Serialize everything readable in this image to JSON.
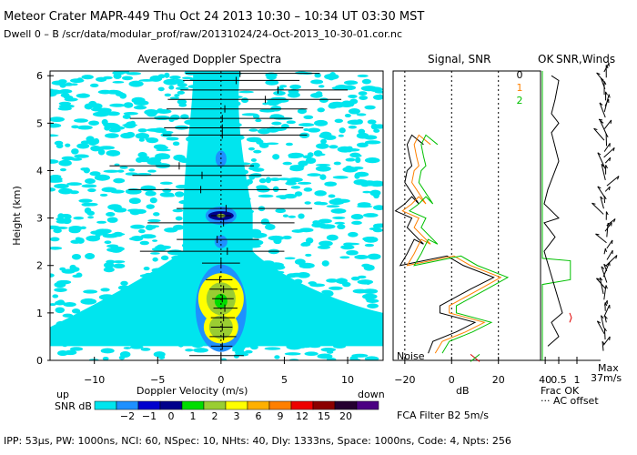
{
  "header": {
    "title": "Meteor Crater   MAPR-449   Thu Oct 24 2013 10:30 – 10:34 UT 03:30 MST",
    "subtitle": "Dwell   0 –  B    /scr/data/modular_prof/raw/20131024/24-Oct-2013_10-30-01.cor.nc"
  },
  "footer": {
    "params": "IPP:  53μs,  PW: 1000ns,  NCI:  60,  NSpec: 10,  NHts: 40,  Dly: 1333ns,  Space: 1000ns,  Code: 4,  Npts: 256",
    "fca": "FCA Filter B2   5m/s"
  },
  "chart_data": [
    {
      "type": "heatmap",
      "title": "Averaged Doppler Spectra",
      "xlabel": "Doppler Velocity (m/s)",
      "ylabel": "Height (km)",
      "xlim": [
        -13.5,
        12.8
      ],
      "ylim": [
        0,
        6.1
      ],
      "x_ticks": [
        -10,
        -5,
        0,
        5,
        10
      ],
      "y_ticks": [
        0,
        1,
        2,
        3,
        4,
        5,
        6
      ],
      "x_left_label": "up",
      "x_right_label": "down",
      "colorbar": {
        "label": "SNR dB",
        "ticks": [
          "−2",
          "−1",
          "0",
          "1",
          "2",
          "3",
          "6",
          "9",
          "12",
          "15",
          "20"
        ],
        "colors": [
          "#00e5ee",
          "#1e90ff",
          "#0000cd",
          "#00008b",
          "#00dd00",
          "#9acd32",
          "#ffff00",
          "#ffb000",
          "#ff7f00",
          "#ee0000",
          "#8b0000",
          "#250030",
          "#4b0082"
        ]
      },
      "velocity_bars": [
        {
          "h": 0.1,
          "v": 0.0,
          "lo": -2.5,
          "hi": 1.8
        },
        {
          "h": 0.3,
          "v": 0.1,
          "lo": -0.8,
          "hi": 0.9
        },
        {
          "h": 0.5,
          "v": 0.2,
          "lo": -0.9,
          "hi": 1.2
        },
        {
          "h": 0.7,
          "v": 0.1,
          "lo": -0.8,
          "hi": 0.9
        },
        {
          "h": 0.9,
          "v": 0.2,
          "lo": -0.8,
          "hi": 1.1
        },
        {
          "h": 1.1,
          "v": 0.3,
          "lo": -0.6,
          "hi": 1.3
        },
        {
          "h": 1.3,
          "v": 0.1,
          "lo": -0.7,
          "hi": 1.0
        },
        {
          "h": 1.5,
          "v": 0.2,
          "lo": -0.9,
          "hi": 1.3
        },
        {
          "h": 1.7,
          "v": -0.1,
          "lo": -1.2,
          "hi": 0.9
        },
        {
          "h": 2.05,
          "v": 0.0,
          "lo": -1.5,
          "hi": 1.5
        },
        {
          "h": 2.3,
          "v": 0.5,
          "lo": -6.4,
          "hi": 5.0
        },
        {
          "h": 2.55,
          "v": -0.3,
          "lo": -3.5,
          "hi": 3.0
        },
        {
          "h": 2.9,
          "v": 0.2,
          "lo": -5.8,
          "hi": 5.8
        },
        {
          "h": 3.05,
          "v": 0.0,
          "lo": -0.8,
          "hi": 0.8
        },
        {
          "h": 3.2,
          "v": 0.4,
          "lo": -3.5,
          "hi": 7.2
        },
        {
          "h": 3.6,
          "v": -1.6,
          "lo": -7.3,
          "hi": 5.2
        },
        {
          "h": 3.9,
          "v": -1.5,
          "lo": -7.0,
          "hi": 4.8
        },
        {
          "h": 4.1,
          "v": -3.3,
          "lo": -8.8,
          "hi": 2.6
        },
        {
          "h": 4.75,
          "v": 0.1,
          "lo": -4.6,
          "hi": 6.8
        },
        {
          "h": 4.9,
          "v": 0.1,
          "lo": -4.5,
          "hi": 6.5
        },
        {
          "h": 5.1,
          "v": 0.1,
          "lo": -7.2,
          "hi": 5.6
        },
        {
          "h": 5.3,
          "v": 0.3,
          "lo": -4.3,
          "hi": 6.8
        },
        {
          "h": 5.5,
          "v": 3.5,
          "lo": -4.2,
          "hi": 9.5
        },
        {
          "h": 5.7,
          "v": 4.5,
          "lo": -3.2,
          "hi": 10.0
        },
        {
          "h": 5.9,
          "v": 1.2,
          "lo": -3.0,
          "hi": 6.2
        },
        {
          "h": 6.05,
          "v": 1.5,
          "lo": -2.8,
          "hi": 7.8
        }
      ]
    },
    {
      "type": "line",
      "title": "Signal, SNR",
      "xlabel": "dB",
      "xlim": [
        -25,
        38
      ],
      "x_ticks": [
        -20,
        0,
        20,
        40
      ],
      "ylim": [
        0,
        6.1
      ],
      "noise_label": "Noise",
      "series": [
        {
          "name": "0",
          "color": "#000000",
          "points": [
            [
              -10,
              0.15
            ],
            [
              -8,
              0.4
            ],
            [
              2,
              0.6
            ],
            [
              10,
              0.8
            ],
            [
              -5,
              1.0
            ],
            [
              -5,
              1.15
            ],
            [
              8,
              1.5
            ],
            [
              18,
              1.75
            ],
            [
              5,
              2.0
            ],
            [
              -2,
              2.2
            ],
            [
              -22,
              2.0
            ],
            [
              -19,
              2.25
            ],
            [
              -16,
              2.55
            ],
            [
              -12,
              2.45
            ],
            [
              -19,
              2.8
            ],
            [
              -17,
              3.0
            ],
            [
              -24,
              3.15
            ],
            [
              -20,
              3.3
            ],
            [
              -17,
              3.45
            ],
            [
              -14,
              3.3
            ],
            [
              -18,
              3.6
            ],
            [
              -20,
              3.75
            ],
            [
              -19,
              4.0
            ],
            [
              -17,
              4.1
            ],
            [
              -18,
              4.3
            ],
            [
              -19,
              4.55
            ],
            [
              -17,
              4.75
            ],
            [
              -12,
              4.55
            ]
          ]
        },
        {
          "name": "1",
          "color": "#ff8000",
          "points": [
            [
              -7,
              0.15
            ],
            [
              -4,
              0.4
            ],
            [
              6,
              0.6
            ],
            [
              14,
              0.8
            ],
            [
              -1,
              1.0
            ],
            [
              -1,
              1.15
            ],
            [
              12,
              1.5
            ],
            [
              21,
              1.75
            ],
            [
              8,
              2.0
            ],
            [
              1,
              2.2
            ],
            [
              -19,
              2.0
            ],
            [
              -16,
              2.25
            ],
            [
              -13,
              2.55
            ],
            [
              -9,
              2.45
            ],
            [
              -16,
              2.8
            ],
            [
              -14,
              3.0
            ],
            [
              -21,
              3.15
            ],
            [
              -17,
              3.3
            ],
            [
              -14,
              3.45
            ],
            [
              -11,
              3.3
            ],
            [
              -15,
              3.6
            ],
            [
              -17,
              3.75
            ],
            [
              -16,
              4.0
            ],
            [
              -14,
              4.1
            ],
            [
              -15,
              4.3
            ],
            [
              -16,
              4.55
            ],
            [
              -14,
              4.75
            ],
            [
              -9,
              4.55
            ]
          ]
        },
        {
          "name": "2",
          "color": "#00c000",
          "points": [
            [
              -4,
              0.15
            ],
            [
              -1,
              0.4
            ],
            [
              9,
              0.6
            ],
            [
              17,
              0.8
            ],
            [
              2,
              1.0
            ],
            [
              2,
              1.15
            ],
            [
              15,
              1.5
            ],
            [
              24,
              1.75
            ],
            [
              11,
              2.0
            ],
            [
              4,
              2.2
            ],
            [
              -16,
              2.0
            ],
            [
              -13,
              2.25
            ],
            [
              -10,
              2.55
            ],
            [
              -6,
              2.45
            ],
            [
              -13,
              2.8
            ],
            [
              -11,
              3.0
            ],
            [
              -18,
              3.15
            ],
            [
              -14,
              3.3
            ],
            [
              -11,
              3.45
            ],
            [
              -8,
              3.3
            ],
            [
              -12,
              3.6
            ],
            [
              -14,
              3.75
            ],
            [
              -13,
              4.0
            ],
            [
              -11,
              4.1
            ],
            [
              -12,
              4.3
            ],
            [
              -13,
              4.55
            ],
            [
              -11,
              4.75
            ],
            [
              -6,
              4.55
            ]
          ]
        }
      ]
    },
    {
      "type": "line",
      "title": "SNR,Winds",
      "ok_label": "OK",
      "xlabel": "Frac OK",
      "x_ticks": [
        "0.5",
        "1"
      ],
      "legend_note": "AC offset",
      "wind_max_label": "Max",
      "wind_max_value": "37m/s",
      "frac_ok_green": [
        [
          0.05,
          0
        ],
        [
          0.05,
          1.6
        ],
        [
          0.82,
          1.7
        ],
        [
          0.82,
          2.1
        ],
        [
          0.05,
          2.15
        ],
        [
          0.05,
          6.1
        ]
      ],
      "frac_ok_red": [
        [
          0.8,
          0.8
        ],
        [
          0.85,
          0.9
        ],
        [
          0.8,
          1.0
        ]
      ],
      "ac_offset": [
        [
          0.2,
          0.3
        ],
        [
          0.5,
          0.5
        ],
        [
          0.3,
          0.8
        ],
        [
          0.6,
          1.0
        ],
        [
          0.1,
          2.3
        ],
        [
          0.4,
          2.6
        ],
        [
          0.1,
          2.9
        ],
        [
          0.5,
          3.0
        ],
        [
          0.1,
          3.3
        ],
        [
          0.2,
          3.6
        ],
        [
          0.5,
          4.2
        ],
        [
          0.3,
          4.8
        ],
        [
          0.5,
          5.0
        ],
        [
          0.3,
          5.2
        ],
        [
          0.4,
          5.5
        ],
        [
          0.5,
          5.9
        ],
        [
          0.3,
          6.0
        ]
      ]
    }
  ]
}
